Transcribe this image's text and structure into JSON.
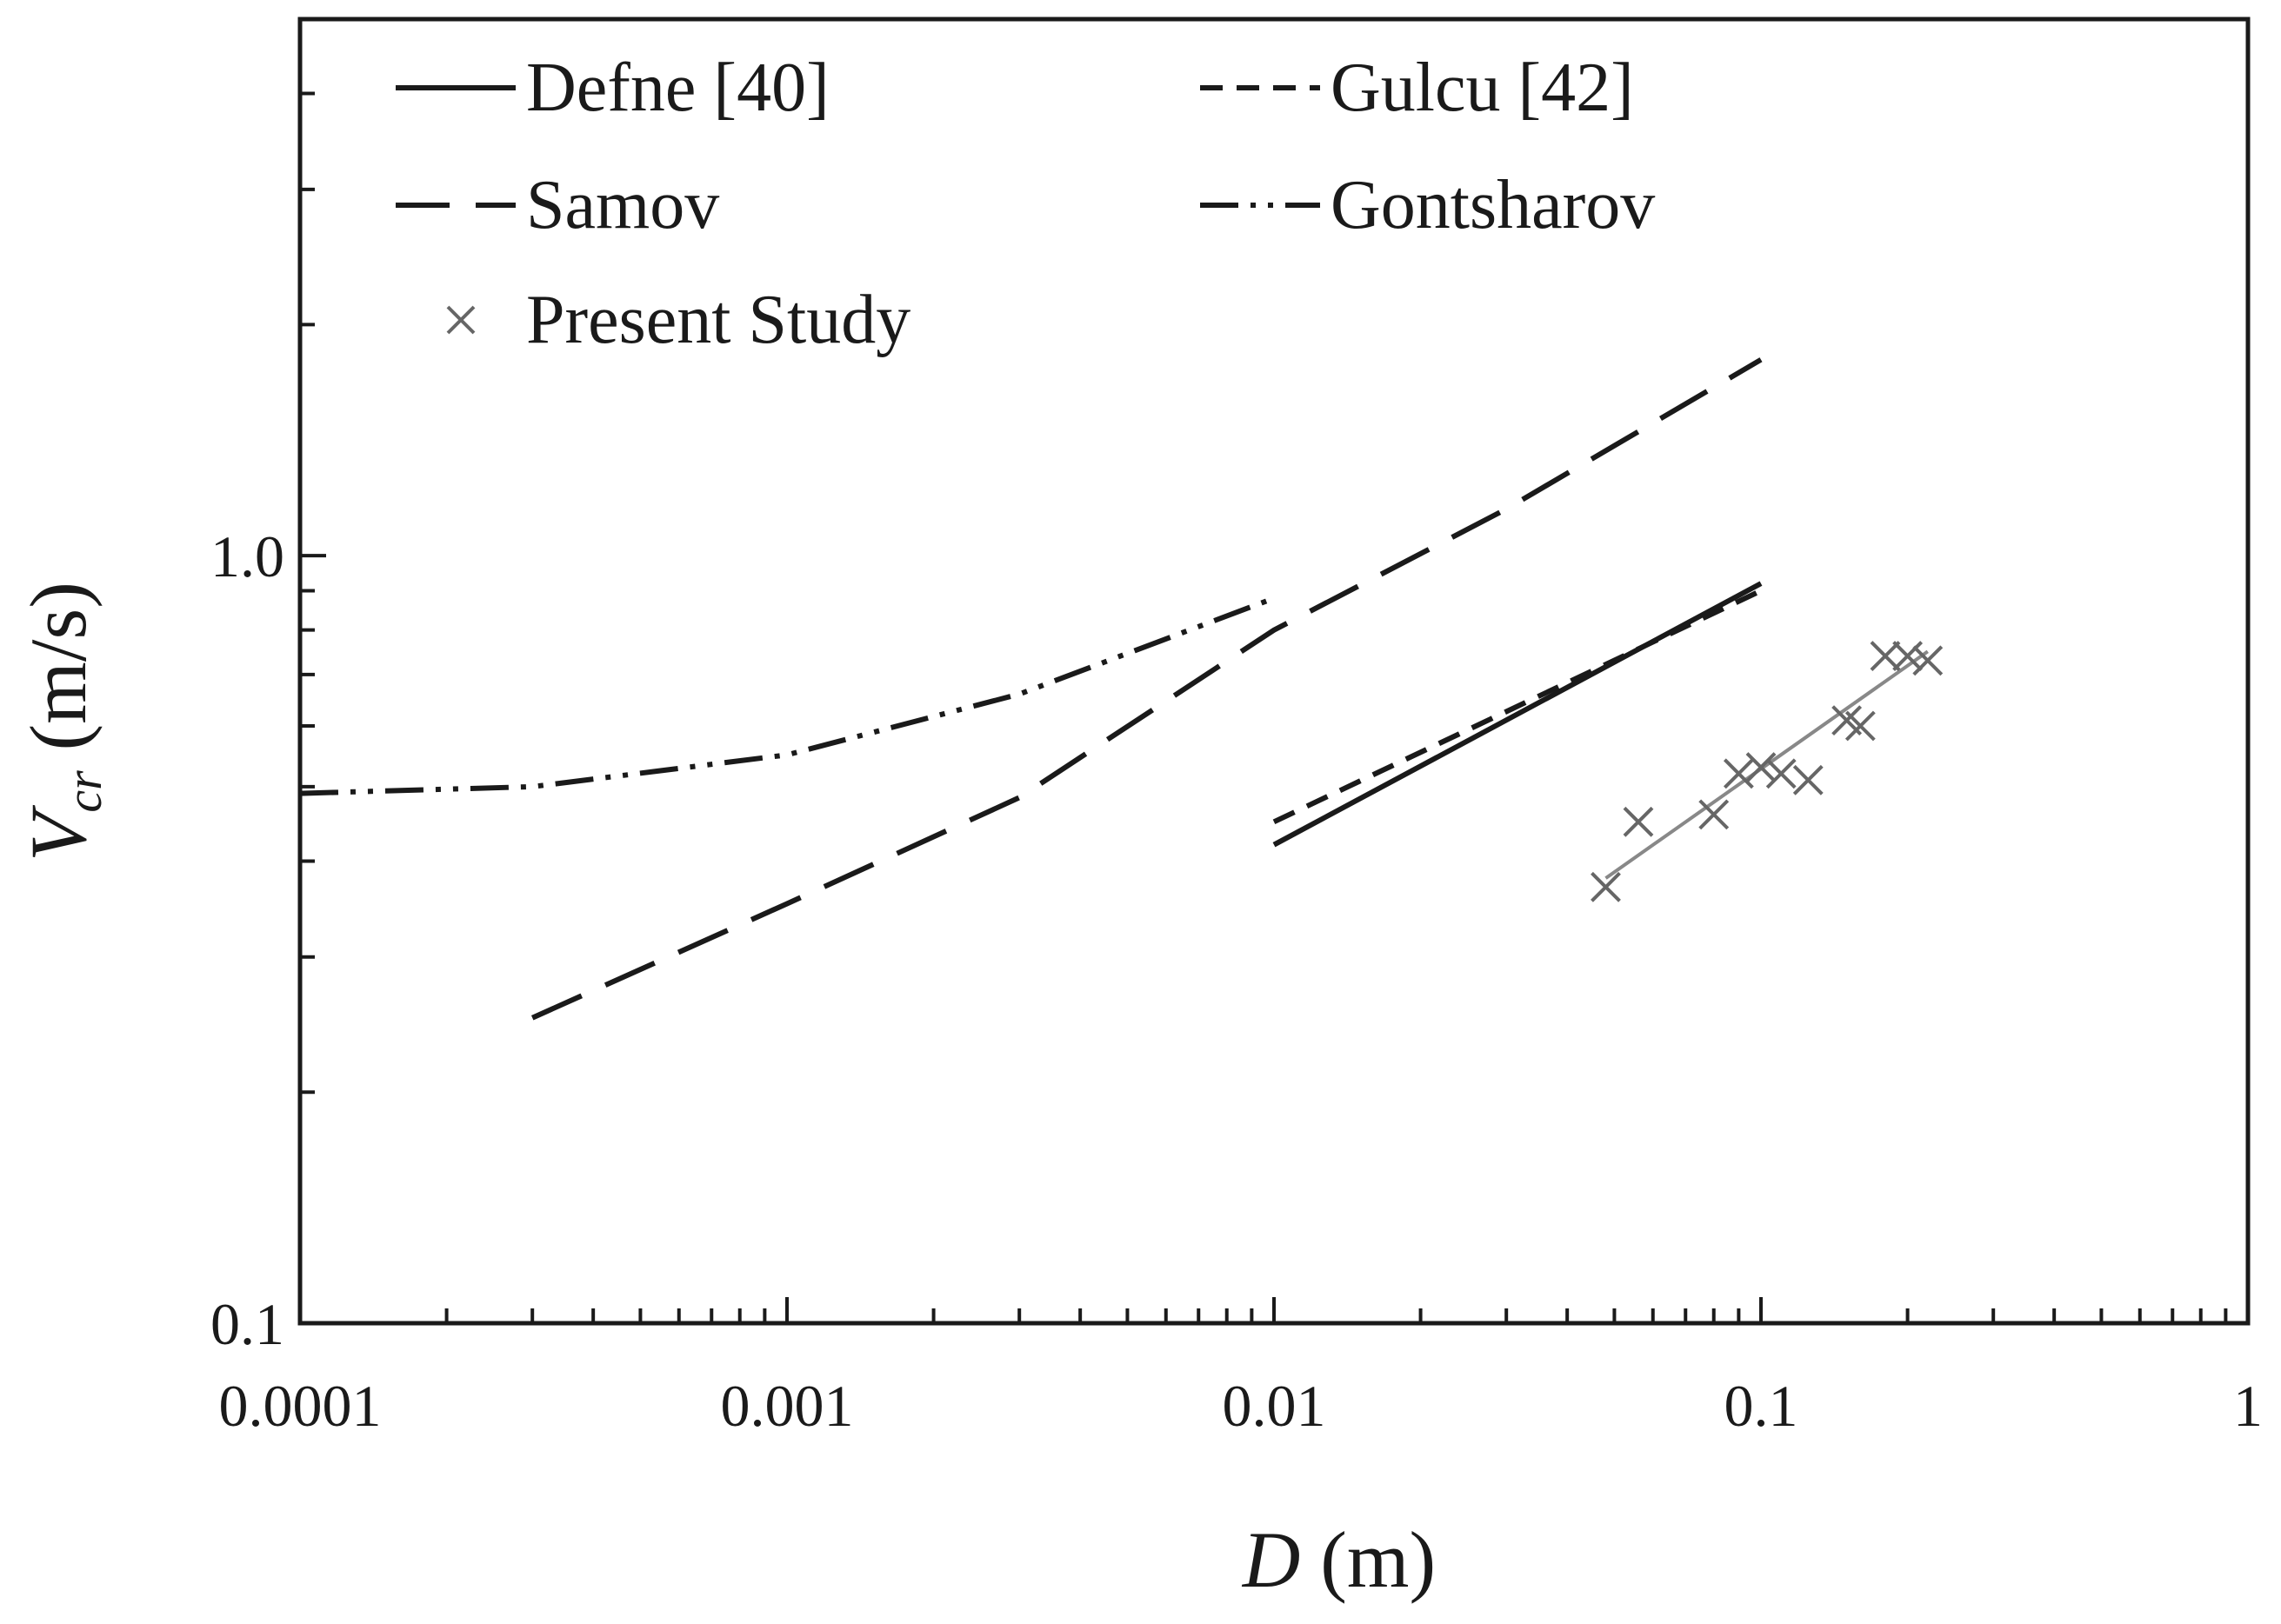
{
  "chart_data": {
    "type": "line",
    "xscale": "log",
    "yscale": "log",
    "xlim": [
      0.0001,
      1
    ],
    "ylim": [
      0.1,
      5
    ],
    "grid": false,
    "xlabel": {
      "symbol": "D",
      "unit": " (m)"
    },
    "ylabel": {
      "symbol": "V",
      "subscript": "cr",
      "unit": " (m/s)"
    },
    "x_ticks": [
      {
        "value": 0.0001,
        "label": "0.0001"
      },
      {
        "value": 0.001,
        "label": "0.001"
      },
      {
        "value": 0.01,
        "label": "0.01"
      },
      {
        "value": 0.1,
        "label": "0.1"
      },
      {
        "value": 1,
        "label": "1"
      }
    ],
    "y_ticks": [
      {
        "value": 0.1,
        "label": "0.1"
      },
      {
        "value": 1.0,
        "label": "1.0"
      }
    ],
    "legend": {
      "placement": "top-left",
      "columns": 2
    },
    "series": [
      {
        "name": "Defne [40]",
        "style": "solid",
        "x": [
          0.01,
          0.1
        ],
        "y": [
          0.42,
          0.92
        ]
      },
      {
        "name": "Gulcu [42]",
        "style": "short-dash",
        "x": [
          0.01,
          0.1
        ],
        "y": [
          0.45,
          0.9
        ]
      },
      {
        "name": "Samov",
        "style": "long-dash",
        "x": [
          0.0003,
          0.001,
          0.003,
          0.01,
          0.03,
          0.1
        ],
        "y": [
          0.25,
          0.352,
          0.484,
          0.8,
          1.15,
          1.8
        ]
      },
      {
        "name": "Gontsharov",
        "style": "dash-dot-dot",
        "x": [
          0.0001,
          0.0003,
          0.001,
          0.003,
          0.01
        ],
        "y": [
          0.49,
          0.5,
          0.55,
          0.66,
          0.88
        ]
      },
      {
        "name": "Present Study",
        "style": "markers",
        "marker": "x",
        "x": [
          0.048,
          0.056,
          0.08,
          0.09,
          0.1,
          0.11,
          0.125,
          0.15,
          0.16,
          0.18,
          0.2,
          0.22
        ],
        "y": [
          0.37,
          0.45,
          0.46,
          0.52,
          0.53,
          0.52,
          0.51,
          0.61,
          0.6,
          0.74,
          0.74,
          0.73
        ]
      }
    ],
    "fit_line": {
      "series": "Present Study",
      "x": [
        0.048,
        0.22
      ],
      "y": [
        0.38,
        0.75
      ]
    },
    "colors": {
      "lines": "#1a1a1a",
      "markers": "#666666",
      "fit": "#888888"
    }
  }
}
